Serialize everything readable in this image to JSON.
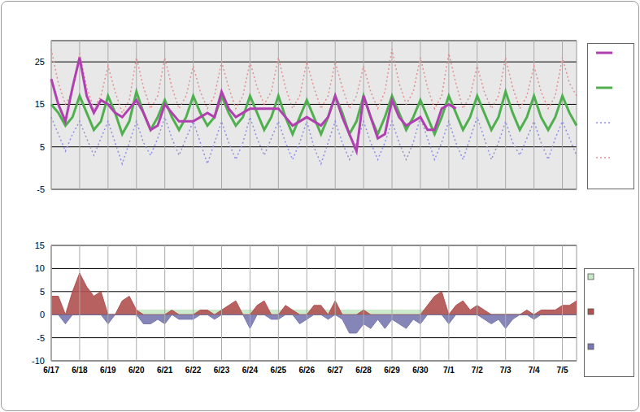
{
  "chart_data": [
    {
      "type": "line",
      "tick_labels": "y",
      "grid": true,
      "categories": [
        "6/17",
        null,
        null,
        null,
        "6/18",
        null,
        null,
        null,
        "6/19",
        null,
        null,
        null,
        "6/20",
        null,
        null,
        null,
        "6/21",
        null,
        null,
        null,
        "6/22",
        null,
        null,
        null,
        "6/23",
        null,
        null,
        null,
        "6/24",
        null,
        null,
        null,
        "6/25",
        null,
        null,
        null,
        "6/26",
        null,
        null,
        null,
        "6/27",
        null,
        null,
        null,
        "6/28",
        null,
        null,
        null,
        "6/29",
        null,
        null,
        null,
        "6/30",
        null,
        null,
        null,
        "7/1",
        null,
        null,
        null,
        "7/2",
        null,
        null,
        null,
        "7/3",
        null,
        null,
        null,
        "7/4",
        null,
        null,
        null,
        "7/5",
        null,
        null
      ],
      "ylim": [
        -5,
        30
      ],
      "yticks": [
        -5,
        5,
        15,
        25
      ],
      "series": [
        {
          "color": "#e09090",
          "line_style": "dotted",
          "values": [
            28,
            20,
            15,
            18,
            27,
            19,
            14,
            17,
            24,
            18,
            13,
            16,
            26,
            19,
            14,
            17,
            26,
            19,
            14,
            17,
            24,
            18,
            14,
            17,
            25,
            19,
            14,
            17,
            25,
            19,
            15,
            18,
            26,
            19,
            14,
            17,
            25,
            19,
            14,
            17,
            25,
            19,
            14,
            17,
            24,
            18,
            14,
            18,
            28,
            20,
            15,
            18,
            26,
            19,
            14,
            17,
            27,
            20,
            14,
            17,
            24,
            18,
            14,
            17,
            26,
            19,
            14,
            17,
            24,
            18,
            14,
            17,
            26,
            20,
            17
          ]
        },
        {
          "color": "#9090e0",
          "line_style": "dotted",
          "values": [
            12,
            8,
            4,
            8,
            11,
            7,
            3,
            7,
            11,
            6,
            1,
            6,
            11,
            6,
            3,
            7,
            12,
            7,
            3,
            7,
            11,
            6,
            1,
            6,
            11,
            6,
            2,
            6,
            12,
            7,
            3,
            7,
            11,
            6,
            2,
            6,
            11,
            5,
            1,
            6,
            11,
            6,
            2,
            6,
            11,
            6,
            2,
            6,
            11,
            6,
            2,
            6,
            12,
            7,
            2,
            6,
            11,
            6,
            2,
            7,
            12,
            7,
            2,
            6,
            11,
            6,
            3,
            7,
            11,
            6,
            2,
            7,
            11,
            7,
            3
          ]
        },
        {
          "color": "#50b050",
          "line_style": "solid",
          "values": [
            15,
            13,
            10,
            12,
            17,
            13,
            9,
            11,
            17,
            13,
            8,
            11,
            18,
            13,
            9,
            12,
            16,
            12,
            9,
            12,
            17,
            13,
            10,
            12,
            17,
            13,
            10,
            12,
            17,
            13,
            9,
            12,
            17,
            12,
            8,
            12,
            16,
            12,
            8,
            12,
            17,
            13,
            8,
            11,
            17,
            12,
            8,
            12,
            17,
            13,
            9,
            12,
            16,
            12,
            8,
            12,
            17,
            13,
            9,
            12,
            17,
            13,
            9,
            12,
            18,
            13,
            9,
            12,
            17,
            12,
            9,
            12,
            17,
            13,
            10
          ]
        },
        {
          "color": "#b040b0",
          "line_style": "solid",
          "values": [
            21,
            15,
            11,
            19,
            26,
            17,
            13,
            16,
            15,
            13,
            12,
            14,
            16,
            13,
            9,
            10,
            15,
            13,
            11,
            11,
            11,
            12,
            13,
            12,
            18,
            14,
            12,
            13,
            14,
            14,
            14,
            14,
            14,
            12,
            10,
            11,
            12,
            11,
            10,
            12,
            17,
            12,
            8,
            4,
            17,
            12,
            7,
            8,
            16,
            12,
            10,
            11,
            12,
            9,
            9,
            14,
            15,
            14,
            null,
            null,
            null,
            null,
            null,
            null,
            null,
            null,
            null,
            null,
            null,
            null,
            null,
            null,
            null,
            null,
            null
          ]
        }
      ]
    },
    {
      "type": "area",
      "grid": true,
      "categories": [
        "6/17",
        null,
        null,
        null,
        "6/18",
        null,
        null,
        null,
        "6/19",
        null,
        null,
        null,
        "6/20",
        null,
        null,
        null,
        "6/21",
        null,
        null,
        null,
        "6/22",
        null,
        null,
        null,
        "6/23",
        null,
        null,
        null,
        "6/24",
        null,
        null,
        null,
        "6/25",
        null,
        null,
        null,
        "6/26",
        null,
        null,
        null,
        "6/27",
        null,
        null,
        null,
        "6/28",
        null,
        null,
        null,
        "6/29",
        null,
        null,
        null,
        "6/30",
        null,
        null,
        null,
        "7/1",
        null,
        null,
        null,
        "7/2",
        null,
        null,
        null,
        "7/3",
        null,
        null,
        null,
        "7/4",
        null,
        null,
        null,
        "7/5",
        null,
        null
      ],
      "ylim": [
        -10,
        15
      ],
      "yticks": [
        -10,
        -5,
        0,
        5,
        10,
        15
      ],
      "series": [
        {
          "color": "#c8e8c8",
          "values": [
            null,
            null,
            null,
            null,
            null,
            null,
            null,
            null,
            null,
            null,
            null,
            null,
            1,
            1,
            1,
            1,
            1,
            1,
            1,
            1,
            1,
            1,
            1,
            1,
            1,
            1,
            1,
            1,
            1,
            1,
            1,
            1,
            1,
            1,
            1,
            1,
            1,
            1,
            1,
            1,
            1,
            1,
            1,
            1,
            1,
            1,
            1,
            1,
            1,
            1,
            1,
            1,
            1,
            1,
            1,
            1,
            null,
            null,
            null,
            null,
            null,
            null,
            null,
            null,
            null,
            null,
            null,
            null,
            null,
            null,
            null,
            null,
            null,
            null,
            null
          ]
        },
        {
          "color": "#b05050",
          "values": [
            4,
            4,
            0,
            5,
            9,
            6,
            4,
            5,
            0,
            0,
            3,
            4,
            1,
            0,
            0,
            0,
            0,
            1,
            0,
            0,
            0,
            1,
            1,
            0,
            1,
            2,
            3,
            0,
            0,
            2,
            3,
            0,
            0,
            2,
            1,
            0,
            0,
            2,
            2,
            0,
            3,
            0,
            0,
            0,
            1,
            0,
            0,
            0,
            0,
            0,
            0,
            0,
            0,
            2,
            4,
            5,
            0,
            2,
            3,
            1,
            2,
            1,
            0,
            0,
            0,
            0,
            0,
            1,
            0,
            1,
            1,
            1,
            2,
            2,
            3
          ]
        },
        {
          "color": "#7878b0",
          "values": [
            0,
            0,
            -2,
            0,
            0,
            0,
            0,
            0,
            -2,
            0,
            0,
            0,
            0,
            -2,
            -2,
            -1,
            -2,
            0,
            -1,
            -1,
            -1,
            0,
            0,
            -1,
            0,
            0,
            0,
            0,
            -3,
            0,
            0,
            -1,
            -1,
            0,
            0,
            -2,
            -1,
            0,
            0,
            -1,
            0,
            -1,
            -4,
            -4,
            -2,
            -3,
            -1,
            -3,
            -1,
            -2,
            -3,
            -1,
            -2,
            0,
            0,
            0,
            -2,
            0,
            0,
            0,
            0,
            -1,
            -2,
            -1,
            -3,
            -1,
            0,
            0,
            -1,
            0,
            0,
            0,
            0,
            0,
            0
          ]
        }
      ]
    }
  ]
}
